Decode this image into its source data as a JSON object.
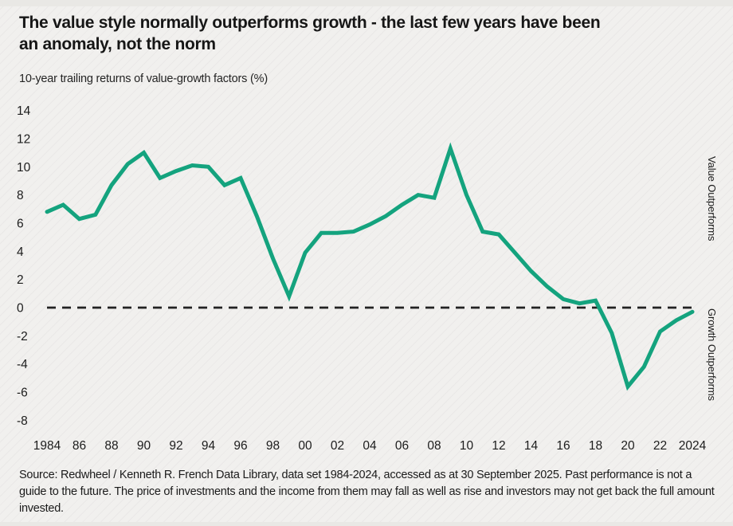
{
  "header": {
    "title": "The value style normally outperforms growth - the last few years have been\nan anomaly, not the norm",
    "subtitle": "10-year trailing returns of value-growth factors (%)"
  },
  "chart_data": {
    "type": "line",
    "title": "10-year trailing returns of value-growth factors (%)",
    "x": [
      1984,
      1985,
      1986,
      1987,
      1988,
      1989,
      1990,
      1991,
      1992,
      1993,
      1994,
      1995,
      1996,
      1997,
      1998,
      1999,
      2000,
      2001,
      2002,
      2003,
      2004,
      2005,
      2006,
      2007,
      2008,
      2009,
      2010,
      2011,
      2012,
      2013,
      2014,
      2015,
      2016,
      2017,
      2018,
      2019,
      2020,
      2021,
      2022,
      2023,
      2024
    ],
    "series": [
      {
        "name": "Value minus growth factor, 10-year trailing return (%)",
        "values": [
          6.8,
          7.3,
          6.3,
          6.6,
          8.7,
          10.2,
          11.0,
          9.2,
          9.7,
          10.1,
          10.0,
          8.7,
          9.2,
          6.5,
          3.5,
          0.8,
          3.9,
          5.3,
          5.3,
          5.4,
          5.9,
          6.5,
          7.3,
          8.0,
          7.8,
          11.3,
          8.0,
          5.4,
          5.2,
          3.9,
          2.6,
          1.5,
          0.6,
          0.3,
          0.5,
          -1.8,
          -5.6,
          -4.2,
          -1.7,
          -0.9,
          -0.3
        ]
      }
    ],
    "ylim": [
      -8,
      14
    ],
    "yticks": [
      14,
      12,
      10,
      8,
      6,
      4,
      2,
      0,
      -2,
      -4,
      -6,
      -8
    ],
    "xtick_years": [
      1984,
      1986,
      1988,
      1990,
      1992,
      1994,
      1996,
      1998,
      2000,
      2002,
      2004,
      2006,
      2008,
      2010,
      2012,
      2014,
      2016,
      2018,
      2020,
      2022,
      2024
    ],
    "xtick_labels": [
      "1984",
      "86",
      "88",
      "90",
      "92",
      "94",
      "96",
      "98",
      "00",
      "02",
      "04",
      "06",
      "08",
      "10",
      "12",
      "14",
      "16",
      "18",
      "20",
      "22",
      "2024"
    ],
    "zero_line_style": "dashed",
    "grid": "off",
    "legend": "none",
    "line_color": "#14a37e",
    "zero_line_color": "#222222",
    "axis_text_color": "#1c1c1c",
    "annotations": {
      "above_zero": "Value Outperforms",
      "below_zero": "Growth Outperforms"
    }
  },
  "footer": {
    "source": "Source: Redwheel / Kenneth R. French Data Library, data set 1984-2024, accessed as at 30 September 2025. Past performance is not a guide to the future. The price of investments and the income from them may fall as well as rise and investors may not get back the full amount invested."
  }
}
